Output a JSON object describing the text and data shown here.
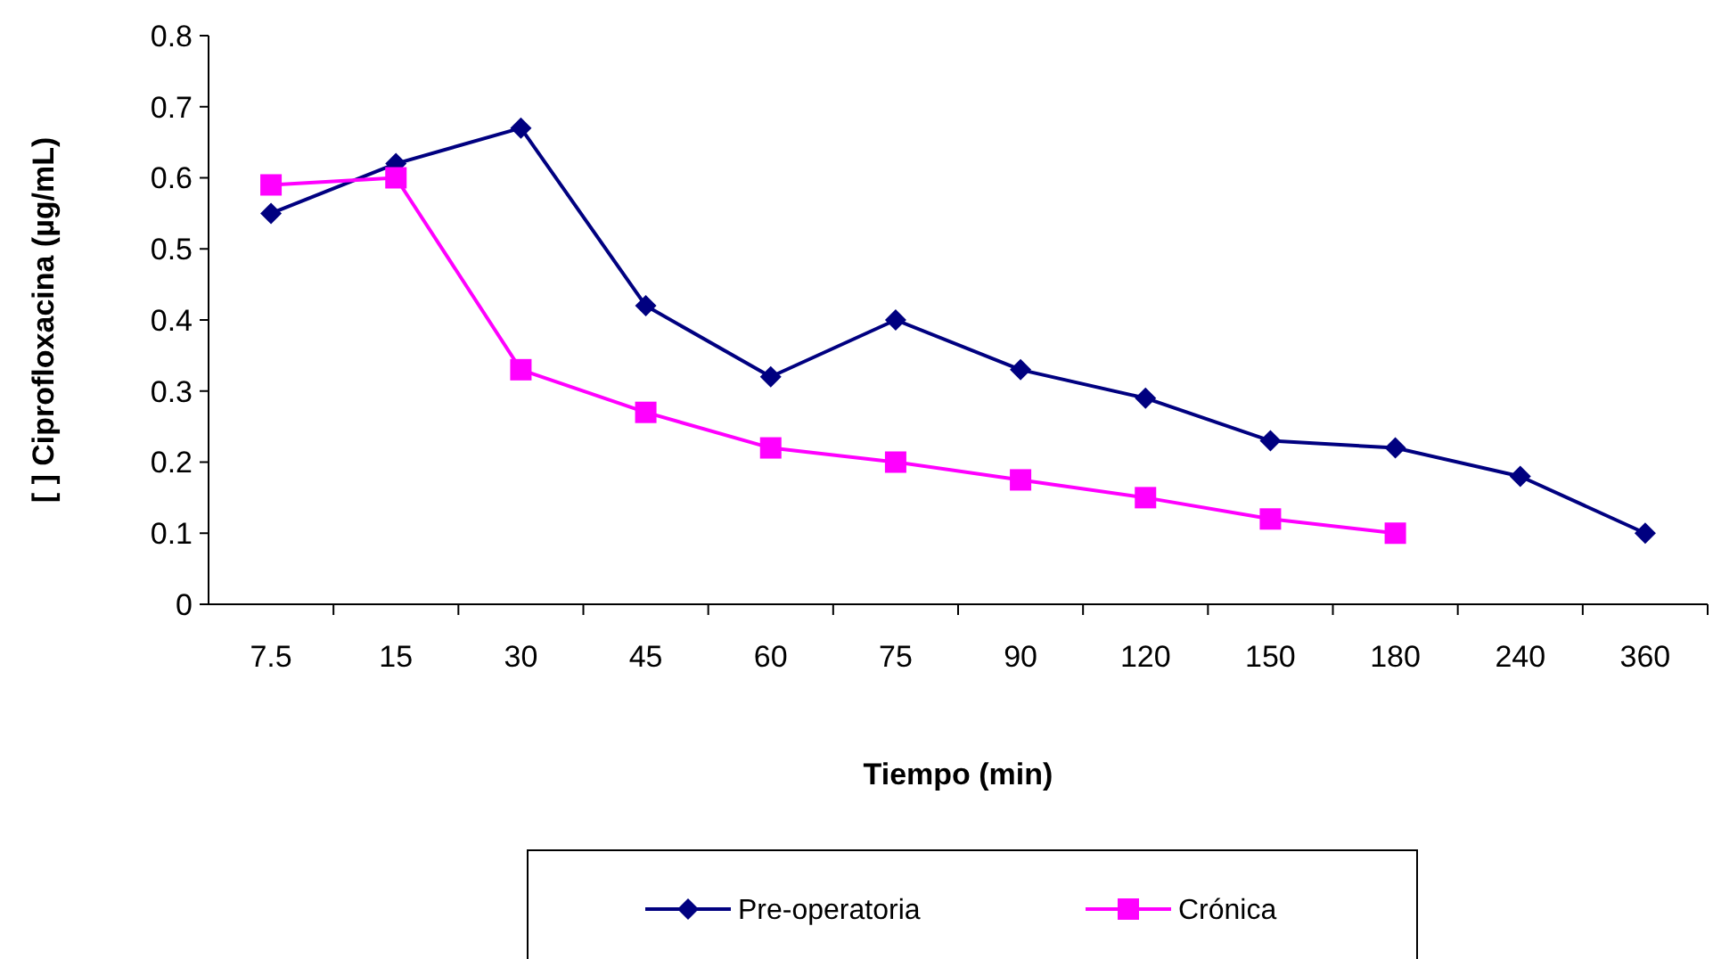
{
  "chart_data": {
    "type": "line",
    "xlabel": "Tiempo (min)",
    "ylabel": "[ ] Ciprofloxacina (µg/mL)",
    "categories": [
      "7.5",
      "15",
      "30",
      "45",
      "60",
      "75",
      "90",
      "120",
      "150",
      "180",
      "240",
      "360"
    ],
    "series": [
      {
        "name": "Pre-operatoria",
        "color": "#000080",
        "marker": "diamond",
        "values": [
          0.55,
          0.62,
          0.67,
          0.42,
          0.32,
          0.4,
          0.33,
          0.29,
          0.23,
          0.22,
          0.18,
          0.1
        ]
      },
      {
        "name": "Crónica",
        "color": "#ff00ff",
        "marker": "square",
        "values": [
          0.59,
          0.6,
          0.33,
          0.27,
          0.22,
          0.2,
          0.175,
          0.15,
          0.12,
          0.1,
          null,
          null
        ]
      }
    ],
    "ylim": [
      0,
      0.8
    ],
    "yticks": [
      0,
      0.1,
      0.2,
      0.3,
      0.4,
      0.5,
      0.6,
      0.7,
      0.8
    ],
    "grid": false,
    "legend": "bottom"
  }
}
